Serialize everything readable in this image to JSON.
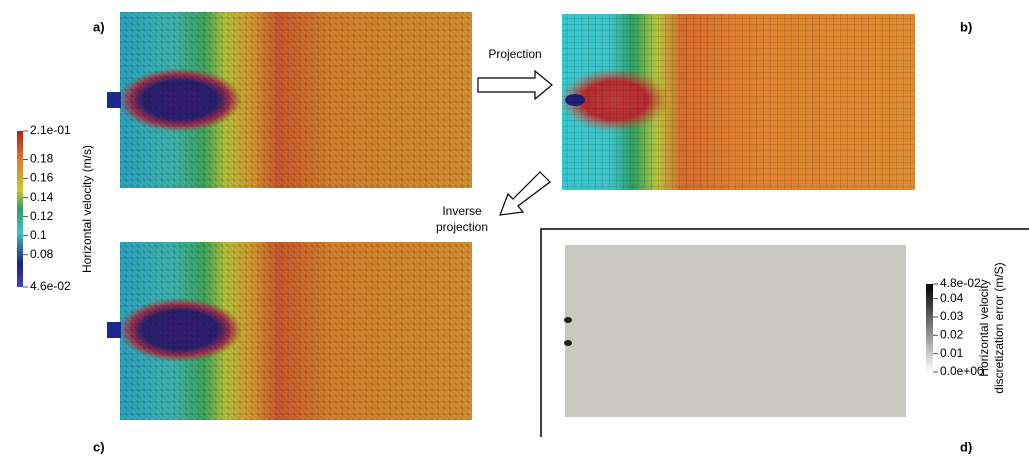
{
  "panels": {
    "a": "a)",
    "b": "b)",
    "c": "c)",
    "d": "d)"
  },
  "arrows": {
    "projection": "Projection",
    "inverse_projection": [
      "Inverse",
      "projection"
    ]
  },
  "colorbars": [
    {
      "title": [
        "Horizontal velocity (m/s)"
      ],
      "range": [
        0.046,
        0.21
      ],
      "ticks": [
        {
          "value": 0.21,
          "label": "2.1e-01"
        },
        0.18,
        0.16,
        0.14,
        0.12,
        0.1,
        0.08,
        {
          "value": 0.046,
          "label": "4.6e-02"
        }
      ]
    },
    {
      "title": [
        "Horizontal velocity",
        "discretization error (m/S)"
      ],
      "range": [
        0,
        0.048
      ],
      "ticks": [
        {
          "value": 0.048,
          "label": "4.8e-02"
        },
        0.04,
        0.03,
        0.02,
        0.01,
        {
          "value": 0,
          "label": "0.0e+00"
        }
      ]
    }
  ]
}
